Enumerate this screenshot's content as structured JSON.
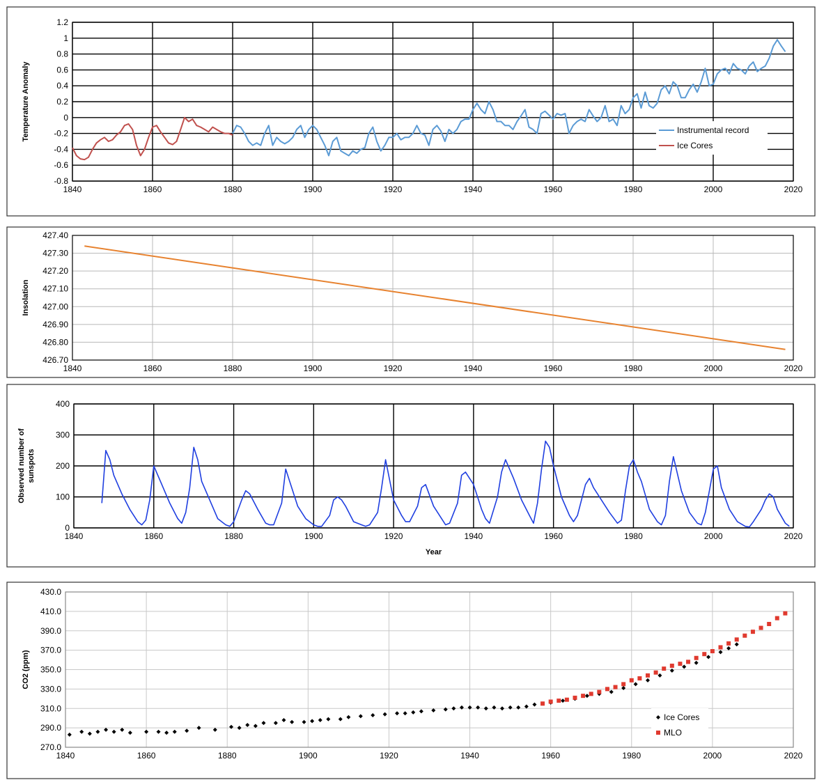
{
  "chart_data": [
    {
      "type": "line",
      "ylabel": "Temperature Anomaly",
      "xlim": [
        1840,
        2020
      ],
      "ylim": [
        -0.8,
        1.2
      ],
      "xticks": [
        "1840",
        "1860",
        "1880",
        "1900",
        "1920",
        "1940",
        "1960",
        "1980",
        "2000",
        "2020"
      ],
      "yticks": [
        "-0.8",
        "-0.6",
        "-0.4",
        "-0.2",
        "0",
        "0.2",
        "0.4",
        "0.6",
        "0.8",
        "1",
        "1.2"
      ],
      "grid": true,
      "legend_position": "right",
      "series": [
        {
          "name": "Instrumental record",
          "color": "#5b9bd5",
          "x": [
            1880,
            1881,
            1882,
            1883,
            1884,
            1885,
            1886,
            1887,
            1888,
            1889,
            1890,
            1891,
            1892,
            1893,
            1894,
            1895,
            1896,
            1897,
            1898,
            1899,
            1900,
            1901,
            1902,
            1903,
            1904,
            1905,
            1906,
            1907,
            1908,
            1909,
            1910,
            1911,
            1912,
            1913,
            1914,
            1915,
            1916,
            1917,
            1918,
            1919,
            1920,
            1921,
            1922,
            1923,
            1924,
            1925,
            1926,
            1927,
            1928,
            1929,
            1930,
            1931,
            1932,
            1933,
            1934,
            1935,
            1936,
            1937,
            1938,
            1939,
            1940,
            1941,
            1942,
            1943,
            1944,
            1945,
            1946,
            1947,
            1948,
            1949,
            1950,
            1951,
            1952,
            1953,
            1954,
            1955,
            1956,
            1957,
            1958,
            1959,
            1960,
            1961,
            1962,
            1963,
            1964,
            1965,
            1966,
            1967,
            1968,
            1969,
            1970,
            1971,
            1972,
            1973,
            1974,
            1975,
            1976,
            1977,
            1978,
            1979,
            1980,
            1981,
            1982,
            1983,
            1984,
            1985,
            1986,
            1987,
            1988,
            1989,
            1990,
            1991,
            1992,
            1993,
            1994,
            1995,
            1996,
            1997,
            1998,
            1999,
            2000,
            2001,
            2002,
            2003,
            2004,
            2005,
            2006,
            2007,
            2008,
            2009,
            2010,
            2011,
            2012,
            2013,
            2014,
            2015,
            2016,
            2017,
            2018
          ],
          "y": [
            -0.2,
            -0.1,
            -0.12,
            -0.2,
            -0.3,
            -0.35,
            -0.32,
            -0.35,
            -0.2,
            -0.1,
            -0.35,
            -0.25,
            -0.3,
            -0.33,
            -0.3,
            -0.25,
            -0.15,
            -0.1,
            -0.25,
            -0.15,
            -0.1,
            -0.15,
            -0.25,
            -0.35,
            -0.48,
            -0.3,
            -0.25,
            -0.42,
            -0.45,
            -0.48,
            -0.42,
            -0.45,
            -0.4,
            -0.38,
            -0.2,
            -0.12,
            -0.3,
            -0.42,
            -0.35,
            -0.25,
            -0.25,
            -0.2,
            -0.28,
            -0.25,
            -0.25,
            -0.2,
            -0.1,
            -0.2,
            -0.22,
            -0.35,
            -0.15,
            -0.1,
            -0.17,
            -0.3,
            -0.15,
            -0.2,
            -0.15,
            -0.05,
            -0.02,
            -0.02,
            0.1,
            0.18,
            0.1,
            0.05,
            0.2,
            0.1,
            -0.05,
            -0.05,
            -0.1,
            -0.1,
            -0.15,
            -0.05,
            0.02,
            0.1,
            -0.12,
            -0.15,
            -0.2,
            0.05,
            0.08,
            0.03,
            -0.02,
            0.05,
            0.03,
            0.05,
            -0.2,
            -0.1,
            -0.05,
            -0.02,
            -0.05,
            0.1,
            0.02,
            -0.05,
            0.0,
            0.15,
            -0.05,
            -0.02,
            -0.1,
            0.15,
            0.05,
            0.1,
            0.25,
            0.3,
            0.12,
            0.32,
            0.15,
            0.12,
            0.18,
            0.35,
            0.4,
            0.3,
            0.45,
            0.4,
            0.25,
            0.25,
            0.35,
            0.42,
            0.32,
            0.45,
            0.62,
            0.4,
            0.42,
            0.55,
            0.6,
            0.62,
            0.55,
            0.68,
            0.62,
            0.6,
            0.55,
            0.65,
            0.7,
            0.58,
            0.62,
            0.65,
            0.75,
            0.9,
            0.98,
            0.9,
            0.83
          ]
        },
        {
          "name": "Ice Cores",
          "color": "#c0504d",
          "x": [
            1840,
            1841,
            1842,
            1843,
            1844,
            1845,
            1846,
            1847,
            1848,
            1849,
            1850,
            1851,
            1852,
            1853,
            1854,
            1855,
            1856,
            1857,
            1858,
            1859,
            1860,
            1861,
            1862,
            1863,
            1864,
            1865,
            1866,
            1867,
            1868,
            1869,
            1870,
            1871,
            1872,
            1873,
            1874,
            1875,
            1876,
            1877,
            1878,
            1879,
            1880
          ],
          "y": [
            -0.38,
            -0.48,
            -0.52,
            -0.53,
            -0.5,
            -0.4,
            -0.32,
            -0.28,
            -0.25,
            -0.3,
            -0.28,
            -0.22,
            -0.18,
            -0.1,
            -0.08,
            -0.15,
            -0.35,
            -0.48,
            -0.4,
            -0.25,
            -0.12,
            -0.1,
            -0.18,
            -0.25,
            -0.32,
            -0.34,
            -0.3,
            -0.15,
            0.0,
            -0.05,
            -0.02,
            -0.1,
            -0.12,
            -0.15,
            -0.18,
            -0.12,
            -0.15,
            -0.18,
            -0.2,
            -0.2,
            -0.22
          ]
        }
      ]
    },
    {
      "type": "line",
      "ylabel": "Insolation",
      "xlim": [
        1840,
        2020
      ],
      "ylim": [
        426.7,
        427.4
      ],
      "xticks": [
        "1840",
        "1860",
        "1880",
        "1900",
        "1920",
        "1940",
        "1960",
        "1980",
        "2000",
        "2020"
      ],
      "yticks": [
        "426.70",
        "426.80",
        "426.90",
        "427.00",
        "427.10",
        "427.20",
        "427.30",
        "427.40"
      ],
      "grid": true,
      "series": [
        {
          "color": "#e7822f",
          "x": [
            1843,
            2018
          ],
          "y": [
            427.34,
            426.76
          ]
        }
      ]
    },
    {
      "type": "line",
      "ylabel": "Observed number of sunspots",
      "xlabel": "Year",
      "xlim": [
        1840,
        2020
      ],
      "ylim": [
        0,
        400
      ],
      "xticks": [
        "1840",
        "1860",
        "1880",
        "1900",
        "1920",
        "1940",
        "1960",
        "1980",
        "2000",
        "2020"
      ],
      "yticks": [
        "0",
        "100",
        "200",
        "300",
        "400"
      ],
      "grid": true,
      "series": [
        {
          "color": "#1f3fe0",
          "x": [
            1847,
            1848,
            1849,
            1850,
            1852,
            1854,
            1856,
            1857,
            1858,
            1859,
            1860,
            1862,
            1864,
            1866,
            1867,
            1868,
            1869,
            1870,
            1871,
            1872,
            1874,
            1876,
            1878,
            1879,
            1880,
            1882,
            1883,
            1884,
            1886,
            1888,
            1889,
            1890,
            1892,
            1893,
            1894,
            1896,
            1898,
            1900,
            1901,
            1902,
            1904,
            1905,
            1906,
            1907,
            1908,
            1910,
            1912,
            1913,
            1914,
            1916,
            1917,
            1918,
            1920,
            1922,
            1923,
            1924,
            1926,
            1927,
            1928,
            1930,
            1932,
            1933,
            1934,
            1936,
            1937,
            1938,
            1940,
            1942,
            1943,
            1944,
            1946,
            1947,
            1948,
            1950,
            1952,
            1954,
            1955,
            1956,
            1957,
            1958,
            1959,
            1960,
            1962,
            1964,
            1965,
            1966,
            1968,
            1969,
            1970,
            1972,
            1974,
            1976,
            1977,
            1978,
            1979,
            1980,
            1981,
            1982,
            1984,
            1986,
            1987,
            1988,
            1989,
            1990,
            1992,
            1994,
            1996,
            1997,
            1998,
            1999,
            2000,
            2001,
            2002,
            2004,
            2006,
            2008,
            2009,
            2010,
            2012,
            2013,
            2014,
            2015,
            2016,
            2018,
            2019
          ],
          "y": [
            80,
            250,
            220,
            170,
            110,
            60,
            20,
            10,
            25,
            90,
            200,
            140,
            80,
            30,
            15,
            50,
            130,
            260,
            220,
            150,
            90,
            30,
            10,
            5,
            20,
            90,
            120,
            110,
            60,
            15,
            10,
            10,
            80,
            190,
            150,
            70,
            30,
            10,
            5,
            5,
            40,
            90,
            100,
            90,
            70,
            20,
            10,
            5,
            10,
            50,
            130,
            220,
            90,
            40,
            20,
            20,
            70,
            130,
            140,
            70,
            30,
            10,
            15,
            80,
            170,
            180,
            140,
            60,
            30,
            15,
            100,
            180,
            220,
            160,
            90,
            40,
            15,
            80,
            190,
            280,
            260,
            200,
            100,
            40,
            20,
            40,
            140,
            160,
            130,
            90,
            50,
            15,
            25,
            120,
            200,
            220,
            180,
            150,
            60,
            20,
            10,
            40,
            150,
            230,
            120,
            50,
            15,
            10,
            50,
            120,
            190,
            200,
            130,
            60,
            20,
            5,
            3,
            20,
            60,
            90,
            110,
            100,
            60,
            15,
            5
          ]
        }
      ]
    },
    {
      "type": "scatter",
      "ylabel": "CO2 (ppm)",
      "xlim": [
        1840,
        2020
      ],
      "ylim": [
        270,
        430
      ],
      "xticks": [
        "1840",
        "1860",
        "1880",
        "1900",
        "1920",
        "1940",
        "1960",
        "1980",
        "2000",
        "2020"
      ],
      "yticks": [
        "270.0",
        "290.0",
        "310.0",
        "330.0",
        "350.0",
        "370.0",
        "390.0",
        "410.0",
        "430.0"
      ],
      "grid": true,
      "legend_position": "right",
      "series": [
        {
          "name": "Ice Cores",
          "color": "#000000",
          "x": [
            1841,
            1844,
            1846,
            1848,
            1850,
            1852,
            1854,
            1856,
            1860,
            1863,
            1865,
            1867,
            1870,
            1873,
            1877,
            1881,
            1883,
            1885,
            1887,
            1889,
            1892,
            1894,
            1896,
            1899,
            1901,
            1903,
            1905,
            1908,
            1910,
            1913,
            1916,
            1919,
            1922,
            1924,
            1926,
            1928,
            1931,
            1934,
            1936,
            1938,
            1940,
            1942,
            1944,
            1946,
            1948,
            1950,
            1952,
            1954,
            1956,
            1958,
            1960,
            1963,
            1966,
            1969,
            1972,
            1975,
            1978,
            1981,
            1984,
            1987,
            1990,
            1993,
            1996,
            1999,
            2002,
            2004,
            2006
          ],
          "y": [
            283,
            286,
            284,
            286,
            288,
            286,
            288,
            285,
            286,
            286,
            285,
            286,
            287,
            290,
            288,
            291,
            290,
            293,
            292,
            295,
            295,
            298,
            296,
            296,
            297,
            298,
            299,
            299,
            301,
            302,
            303,
            304,
            305,
            305,
            306,
            307,
            308,
            309,
            310,
            311,
            311,
            311,
            310,
            311,
            310,
            311,
            311,
            312,
            314,
            315,
            316,
            318,
            320,
            323,
            325,
            327,
            331,
            335,
            339,
            344,
            349,
            353,
            357,
            363,
            368,
            372,
            376
          ]
        },
        {
          "name": "MLO",
          "color": "#e03a2f",
          "x": [
            1958,
            1960,
            1962,
            1964,
            1966,
            1968,
            1970,
            1972,
            1974,
            1976,
            1978,
            1980,
            1982,
            1984,
            1986,
            1988,
            1990,
            1992,
            1994,
            1996,
            1998,
            2000,
            2002,
            2004,
            2006,
            2008,
            2010,
            2012,
            2014,
            2016,
            2018
          ],
          "y": [
            315,
            317,
            318,
            319,
            321,
            323,
            325,
            327,
            330,
            332,
            335,
            339,
            341,
            344,
            347,
            351,
            354,
            356,
            358,
            362,
            366,
            369,
            373,
            377,
            381,
            385,
            389,
            393,
            397,
            403,
            408
          ]
        }
      ]
    }
  ]
}
